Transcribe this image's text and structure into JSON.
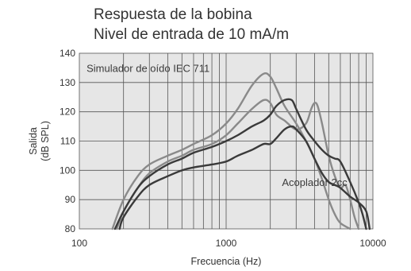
{
  "chart_data": {
    "type": "line",
    "title": "Respuesta de la bobina",
    "subtitle": "Nivel de entrada de 10 mA/m",
    "xlabel": "Frecuencia (Hz)",
    "ylabel": [
      "Salida",
      "(dB SPL)"
    ],
    "x_scale": "log",
    "xlim": [
      100,
      10000
    ],
    "ylim": [
      80,
      140
    ],
    "x_ticks": [
      100,
      1000,
      10000
    ],
    "x_tick_labels": [
      "100",
      "1000",
      "10000"
    ],
    "y_ticks": [
      80,
      90,
      100,
      110,
      120,
      130,
      140
    ],
    "y_tick_labels": [
      "80",
      "90",
      "100",
      "110",
      "120",
      "130",
      "140"
    ],
    "grid": true,
    "plot_background": "#e6e6e6",
    "annotations": [
      {
        "text": "Simulador de oído IEC 711",
        "x": 112,
        "y": 135
      },
      {
        "text": "Acoplador 2cc",
        "x": 2400,
        "y": 96
      }
    ],
    "series": [
      {
        "color": "#8a8a8a",
        "x": [
          168,
          200,
          250,
          300,
          400,
          500,
          600,
          800,
          1000,
          1200,
          1500,
          1800,
          2000,
          2200,
          2500,
          3000,
          3500,
          4000,
          4500,
          5000,
          5500,
          6000,
          7000
        ],
        "values": [
          80,
          90,
          98,
          102,
          105,
          107,
          109,
          112,
          116,
          121,
          129,
          133,
          132,
          128,
          122,
          116,
          110,
          104,
          97,
          90,
          85,
          82,
          80
        ]
      },
      {
        "color": "#8a8a8a",
        "x": [
          180,
          200,
          250,
          300,
          400,
          500,
          600,
          800,
          1000,
          1200,
          1500,
          1800,
          2000,
          2200,
          2500,
          3000,
          3500,
          3800,
          4000,
          4200,
          4500,
          5000,
          5500,
          6000,
          6500,
          7000,
          7500,
          8000
        ],
        "values": [
          80,
          86,
          94,
          99,
          103,
          105,
          107,
          109,
          112,
          116,
          121,
          124,
          123,
          119,
          117,
          114,
          116,
          121,
          123,
          122,
          116,
          105,
          98,
          94,
          95,
          90,
          84,
          80
        ]
      },
      {
        "color": "#3a3a3a",
        "x": [
          175,
          200,
          250,
          300,
          400,
          500,
          600,
          800,
          1000,
          1200,
          1500,
          1800,
          2000,
          2200,
          2500,
          2800,
          3000,
          3500,
          4000,
          4500,
          5000,
          5500,
          6000,
          7000,
          8000,
          8500,
          9000
        ],
        "values": [
          80,
          86,
          94,
          98,
          102,
          104,
          106,
          108,
          110,
          112,
          115,
          117,
          119,
          122,
          124,
          124,
          121,
          114,
          110,
          107,
          105,
          104,
          103,
          96,
          89,
          85,
          80
        ]
      },
      {
        "color": "#3a3a3a",
        "x": [
          188,
          200,
          250,
          300,
          400,
          500,
          600,
          800,
          1000,
          1200,
          1500,
          1800,
          2000,
          2200,
          2500,
          2800,
          3000,
          3500,
          4000,
          4500,
          5000,
          5500,
          6000,
          7000,
          8000,
          9000,
          9500
        ],
        "values": [
          80,
          84,
          91,
          95,
          98,
          100,
          101,
          102,
          103,
          105,
          107,
          109,
          109,
          111,
          114,
          115,
          114,
          110,
          104,
          99,
          96,
          95,
          94,
          91,
          89,
          86,
          80
        ]
      }
    ]
  }
}
